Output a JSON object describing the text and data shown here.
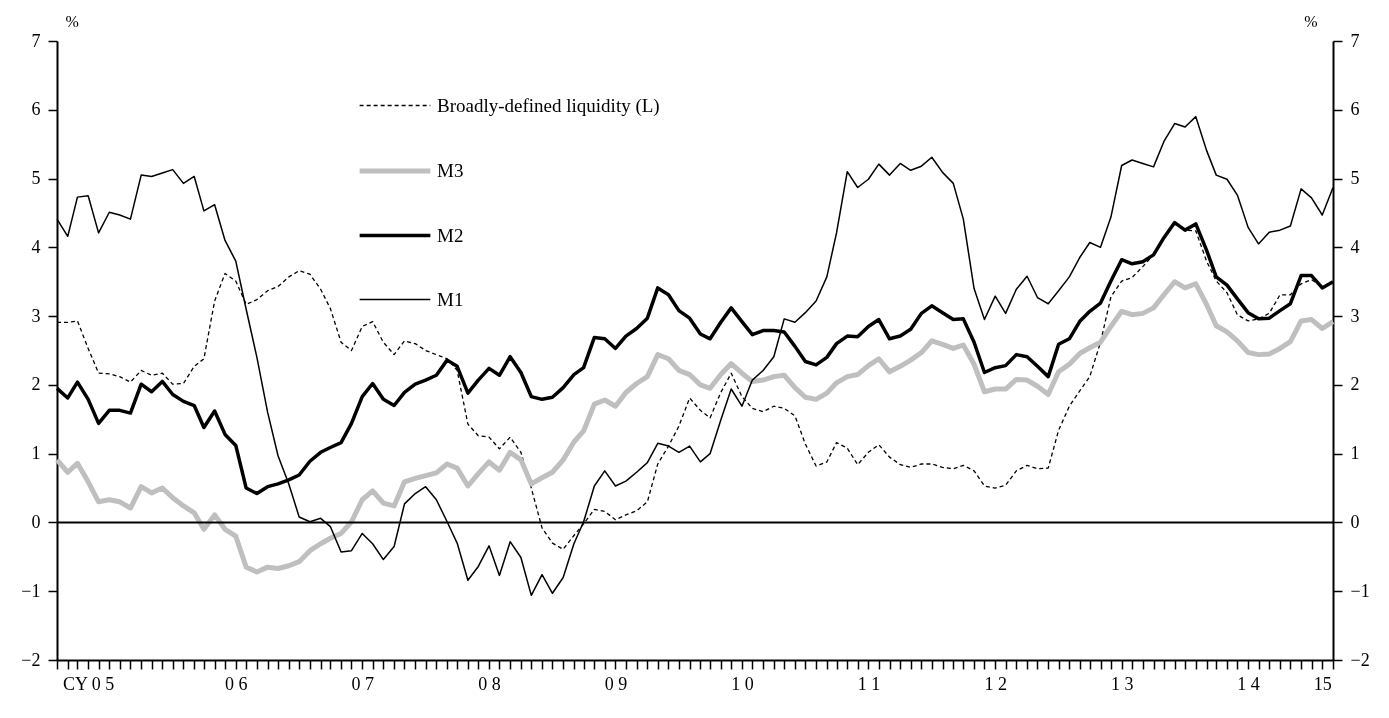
{
  "chart_data": {
    "type": "line",
    "ylabel": "%",
    "y2label": "%",
    "ylim": [
      -2,
      7
    ],
    "yticks": [
      -2,
      -1,
      0,
      1,
      2,
      3,
      4,
      5,
      6,
      7
    ],
    "y2lim": [
      -2,
      7
    ],
    "y2ticks": [
      -2,
      -1,
      0,
      1,
      2,
      3,
      4,
      5,
      6,
      7
    ],
    "xlim": [
      "2005-01",
      "2015-02"
    ],
    "legend": "top left",
    "ref_lines": [
      {
        "axis": "y",
        "value": 0,
        "color": "#000000",
        "line_style": "solid"
      }
    ],
    "x": [
      "2005-01",
      "2005-02",
      "2005-03",
      "2005-04",
      "2005-05",
      "2005-06",
      "2005-07",
      "2005-08",
      "2005-09",
      "2005-10",
      "2005-11",
      "2005-12",
      "2006-01",
      "2006-02",
      "2006-03",
      "2006-04",
      "2006-05",
      "2006-06",
      "2006-07",
      "2006-08",
      "2006-09",
      "2006-10",
      "2006-11",
      "2006-12",
      "2007-01",
      "2007-02",
      "2007-03",
      "2007-04",
      "2007-05",
      "2007-06",
      "2007-07",
      "2007-08",
      "2007-09",
      "2007-10",
      "2007-11",
      "2007-12",
      "2008-01",
      "2008-02",
      "2008-03",
      "2008-04",
      "2008-05",
      "2008-06",
      "2008-07",
      "2008-08",
      "2008-09",
      "2008-10",
      "2008-11",
      "2008-12",
      "2009-01",
      "2009-02",
      "2009-03",
      "2009-04",
      "2009-05",
      "2009-06",
      "2009-07",
      "2009-08",
      "2009-09",
      "2009-10",
      "2009-11",
      "2009-12",
      "2010-01",
      "2010-02",
      "2010-03",
      "2010-04",
      "2010-05",
      "2010-06",
      "2010-07",
      "2010-08",
      "2010-09",
      "2010-10",
      "2010-11",
      "2010-12",
      "2011-01",
      "2011-02",
      "2011-03",
      "2011-04",
      "2011-05",
      "2011-06",
      "2011-07",
      "2011-08",
      "2011-09",
      "2011-10",
      "2011-11",
      "2011-12",
      "2012-01",
      "2012-02",
      "2012-03",
      "2012-04",
      "2012-05",
      "2012-06",
      "2012-07",
      "2012-08",
      "2012-09",
      "2012-10",
      "2012-11",
      "2012-12",
      "2013-01",
      "2013-02",
      "2013-03",
      "2013-04",
      "2013-05",
      "2013-06",
      "2013-07",
      "2013-08",
      "2013-09",
      "2013-10",
      "2013-11",
      "2013-12",
      "2014-01",
      "2014-02",
      "2014-03",
      "2014-04",
      "2014-05",
      "2014-06",
      "2014-07",
      "2014-08",
      "2014-09",
      "2014-10",
      "2014-11",
      "2014-12",
      "2015-01",
      "2015-02"
    ],
    "xticks": [
      {
        "value": "2005-01",
        "label": null
      },
      {
        "value": "2005-02",
        "label": null
      },
      {
        "value": "2005-03",
        "label": null
      },
      {
        "value": "2005-04",
        "label": "CY 0 5"
      },
      {
        "value": "2005-05",
        "label": null
      },
      {
        "value": "2005-06",
        "label": null
      },
      {
        "value": "2005-07",
        "label": null
      },
      {
        "value": "2005-08",
        "label": null
      },
      {
        "value": "2005-09",
        "label": null
      },
      {
        "value": "2005-10",
        "label": null
      },
      {
        "value": "2005-11",
        "label": null
      },
      {
        "value": "2005-12",
        "label": null
      },
      {
        "value": "2006-01",
        "label": null
      },
      {
        "value": "2006-02",
        "label": null
      },
      {
        "value": "2006-03",
        "label": null
      },
      {
        "value": "2006-04",
        "label": null
      },
      {
        "value": "2006-05",
        "label": null
      },
      {
        "value": "2006-06",
        "label": "0 6"
      },
      {
        "value": "2006-07",
        "label": null
      },
      {
        "value": "2006-08",
        "label": null
      },
      {
        "value": "2006-09",
        "label": null
      },
      {
        "value": "2006-10",
        "label": null
      },
      {
        "value": "2006-11",
        "label": null
      },
      {
        "value": "2006-12",
        "label": null
      },
      {
        "value": "2007-01",
        "label": null
      },
      {
        "value": "2007-02",
        "label": null
      },
      {
        "value": "2007-03",
        "label": null
      },
      {
        "value": "2007-04",
        "label": null
      },
      {
        "value": "2007-05",
        "label": null
      },
      {
        "value": "2007-06",
        "label": "0 7"
      },
      {
        "value": "2007-07",
        "label": null
      },
      {
        "value": "2007-08",
        "label": null
      },
      {
        "value": "2007-09",
        "label": null
      },
      {
        "value": "2007-10",
        "label": null
      },
      {
        "value": "2007-11",
        "label": null
      },
      {
        "value": "2007-12",
        "label": null
      },
      {
        "value": "2008-01",
        "label": null
      },
      {
        "value": "2008-02",
        "label": null
      },
      {
        "value": "2008-03",
        "label": null
      },
      {
        "value": "2008-04",
        "label": null
      },
      {
        "value": "2008-05",
        "label": null
      },
      {
        "value": "2008-06",
        "label": "0 8"
      },
      {
        "value": "2008-07",
        "label": null
      },
      {
        "value": "2008-08",
        "label": null
      },
      {
        "value": "2008-09",
        "label": null
      },
      {
        "value": "2008-10",
        "label": null
      },
      {
        "value": "2008-11",
        "label": null
      },
      {
        "value": "2008-12",
        "label": null
      },
      {
        "value": "2009-01",
        "label": null
      },
      {
        "value": "2009-02",
        "label": null
      },
      {
        "value": "2009-03",
        "label": null
      },
      {
        "value": "2009-04",
        "label": null
      },
      {
        "value": "2009-05",
        "label": null
      },
      {
        "value": "2009-06",
        "label": "0 9"
      },
      {
        "value": "2009-07",
        "label": null
      },
      {
        "value": "2009-08",
        "label": null
      },
      {
        "value": "2009-09",
        "label": null
      },
      {
        "value": "2009-10",
        "label": null
      },
      {
        "value": "2009-11",
        "label": null
      },
      {
        "value": "2009-12",
        "label": null
      },
      {
        "value": "2010-01",
        "label": null
      },
      {
        "value": "2010-02",
        "label": null
      },
      {
        "value": "2010-03",
        "label": null
      },
      {
        "value": "2010-04",
        "label": null
      },
      {
        "value": "2010-05",
        "label": null
      },
      {
        "value": "2010-06",
        "label": "1 0"
      },
      {
        "value": "2010-07",
        "label": null
      },
      {
        "value": "2010-08",
        "label": null
      },
      {
        "value": "2010-09",
        "label": null
      },
      {
        "value": "2010-10",
        "label": null
      },
      {
        "value": "2010-11",
        "label": null
      },
      {
        "value": "2010-12",
        "label": null
      },
      {
        "value": "2011-01",
        "label": null
      },
      {
        "value": "2011-02",
        "label": null
      },
      {
        "value": "2011-03",
        "label": null
      },
      {
        "value": "2011-04",
        "label": null
      },
      {
        "value": "2011-05",
        "label": null
      },
      {
        "value": "2011-06",
        "label": "1 1"
      },
      {
        "value": "2011-07",
        "label": null
      },
      {
        "value": "2011-08",
        "label": null
      },
      {
        "value": "2011-09",
        "label": null
      },
      {
        "value": "2011-10",
        "label": null
      },
      {
        "value": "2011-11",
        "label": null
      },
      {
        "value": "2011-12",
        "label": null
      },
      {
        "value": "2012-01",
        "label": null
      },
      {
        "value": "2012-02",
        "label": null
      },
      {
        "value": "2012-03",
        "label": null
      },
      {
        "value": "2012-04",
        "label": null
      },
      {
        "value": "2012-05",
        "label": null
      },
      {
        "value": "2012-06",
        "label": "1 2"
      },
      {
        "value": "2012-07",
        "label": null
      },
      {
        "value": "2012-08",
        "label": null
      },
      {
        "value": "2012-09",
        "label": null
      },
      {
        "value": "2012-10",
        "label": null
      },
      {
        "value": "2012-11",
        "label": null
      },
      {
        "value": "2012-12",
        "label": null
      },
      {
        "value": "2013-01",
        "label": null
      },
      {
        "value": "2013-02",
        "label": null
      },
      {
        "value": "2013-03",
        "label": null
      },
      {
        "value": "2013-04",
        "label": null
      },
      {
        "value": "2013-05",
        "label": null
      },
      {
        "value": "2013-06",
        "label": "1 3"
      },
      {
        "value": "2013-07",
        "label": null
      },
      {
        "value": "2013-08",
        "label": null
      },
      {
        "value": "2013-09",
        "label": null
      },
      {
        "value": "2013-10",
        "label": null
      },
      {
        "value": "2013-11",
        "label": null
      },
      {
        "value": "2013-12",
        "label": null
      },
      {
        "value": "2014-01",
        "label": null
      },
      {
        "value": "2014-02",
        "label": null
      },
      {
        "value": "2014-03",
        "label": null
      },
      {
        "value": "2014-04",
        "label": null
      },
      {
        "value": "2014-05",
        "label": null
      },
      {
        "value": "2014-06",
        "label": "1 4"
      },
      {
        "value": "2014-07",
        "label": null
      },
      {
        "value": "2014-08",
        "label": null
      },
      {
        "value": "2014-09",
        "label": null
      },
      {
        "value": "2014-10",
        "label": null
      },
      {
        "value": "2014-11",
        "label": null
      },
      {
        "value": "2014-12",
        "label": null
      },
      {
        "value": "2015-01",
        "label": "15"
      },
      {
        "value": "2015-02",
        "label": null
      }
    ],
    "series": [
      {
        "name": "Broadly-defined liquidity (L)",
        "color": "#000000",
        "line_style": "dashed",
        "values": [
          2.91,
          2.91,
          2.93,
          2.53,
          2.17,
          2.16,
          2.12,
          2.04,
          2.21,
          2.14,
          2.17,
          2.01,
          2.02,
          2.27,
          2.38,
          3.22,
          3.62,
          3.51,
          3.17,
          3.24,
          3.37,
          3.43,
          3.57,
          3.66,
          3.61,
          3.39,
          3.11,
          2.62,
          2.5,
          2.85,
          2.92,
          2.62,
          2.44,
          2.64,
          2.6,
          2.5,
          2.44,
          2.38,
          2.21,
          1.43,
          1.26,
          1.24,
          1.07,
          1.24,
          1.02,
          0.5,
          -0.08,
          -0.3,
          -0.39,
          -0.19,
          -0.02,
          0.19,
          0.16,
          0.04,
          0.11,
          0.17,
          0.3,
          0.85,
          1.11,
          1.4,
          1.81,
          1.63,
          1.52,
          1.89,
          2.17,
          1.83,
          1.66,
          1.61,
          1.69,
          1.66,
          1.55,
          1.14,
          0.82,
          0.88,
          1.16,
          1.08,
          0.84,
          1.02,
          1.13,
          0.95,
          0.84,
          0.8,
          0.85,
          0.85,
          0.8,
          0.78,
          0.83,
          0.75,
          0.53,
          0.5,
          0.54,
          0.75,
          0.83,
          0.78,
          0.79,
          1.34,
          1.69,
          1.92,
          2.12,
          2.62,
          3.28,
          3.51,
          3.56,
          3.72,
          3.89,
          4.15,
          4.35,
          4.25,
          4.24,
          3.8,
          3.51,
          3.34,
          3.02,
          2.93,
          2.96,
          3.04,
          3.31,
          3.31,
          3.47,
          3.53,
          3.43,
          3.49
        ]
      },
      {
        "name": "M3",
        "color": "#bfbfbf",
        "line_style": "solid",
        "values": [
          0.91,
          0.73,
          0.86,
          0.59,
          0.3,
          0.33,
          0.3,
          0.21,
          0.52,
          0.43,
          0.5,
          0.36,
          0.24,
          0.14,
          -0.1,
          0.11,
          -0.1,
          -0.2,
          -0.65,
          -0.72,
          -0.65,
          -0.67,
          -0.63,
          -0.57,
          -0.41,
          -0.31,
          -0.23,
          -0.16,
          0.01,
          0.33,
          0.46,
          0.28,
          0.24,
          0.59,
          0.64,
          0.68,
          0.72,
          0.85,
          0.79,
          0.53,
          0.71,
          0.88,
          0.76,
          1.02,
          0.91,
          0.56,
          0.65,
          0.73,
          0.91,
          1.17,
          1.33,
          1.72,
          1.78,
          1.69,
          1.89,
          2.02,
          2.12,
          2.44,
          2.38,
          2.21,
          2.15,
          2.0,
          1.95,
          2.15,
          2.31,
          2.17,
          2.05,
          2.07,
          2.12,
          2.14,
          1.96,
          1.82,
          1.79,
          1.88,
          2.03,
          2.12,
          2.15,
          2.28,
          2.38,
          2.19,
          2.27,
          2.36,
          2.47,
          2.64,
          2.59,
          2.53,
          2.58,
          2.3,
          1.9,
          1.94,
          1.94,
          2.08,
          2.07,
          1.98,
          1.86,
          2.19,
          2.3,
          2.46,
          2.54,
          2.62,
          2.85,
          3.07,
          3.02,
          3.04,
          3.12,
          3.31,
          3.5,
          3.41,
          3.47,
          3.17,
          2.86,
          2.77,
          2.64,
          2.47,
          2.44,
          2.45,
          2.53,
          2.63,
          2.93,
          2.95,
          2.82,
          2.92
        ]
      },
      {
        "name": "M2",
        "color": "#000000",
        "line_style": "solid",
        "values": [
          1.95,
          1.81,
          2.04,
          1.79,
          1.44,
          1.63,
          1.63,
          1.59,
          2.01,
          1.9,
          2.05,
          1.86,
          1.76,
          1.7,
          1.38,
          1.62,
          1.28,
          1.12,
          0.5,
          0.42,
          0.52,
          0.56,
          0.62,
          0.69,
          0.89,
          1.02,
          1.09,
          1.16,
          1.44,
          1.83,
          2.02,
          1.79,
          1.7,
          1.89,
          2.01,
          2.07,
          2.14,
          2.36,
          2.27,
          1.88,
          2.07,
          2.24,
          2.14,
          2.41,
          2.18,
          1.83,
          1.79,
          1.82,
          1.96,
          2.15,
          2.25,
          2.69,
          2.67,
          2.53,
          2.71,
          2.82,
          2.97,
          3.41,
          3.31,
          3.08,
          2.97,
          2.74,
          2.67,
          2.91,
          3.12,
          2.92,
          2.73,
          2.79,
          2.79,
          2.77,
          2.56,
          2.34,
          2.29,
          2.4,
          2.6,
          2.71,
          2.7,
          2.85,
          2.95,
          2.67,
          2.71,
          2.81,
          3.04,
          3.15,
          3.05,
          2.95,
          2.96,
          2.62,
          2.18,
          2.25,
          2.28,
          2.44,
          2.41,
          2.27,
          2.12,
          2.59,
          2.67,
          2.93,
          3.07,
          3.19,
          3.51,
          3.82,
          3.76,
          3.79,
          3.89,
          4.14,
          4.36,
          4.25,
          4.34,
          3.96,
          3.57,
          3.45,
          3.25,
          3.05,
          2.96,
          2.97,
          3.08,
          3.18,
          3.59,
          3.59,
          3.41,
          3.5
        ]
      },
      {
        "name": "M1",
        "color": "#000000",
        "line_style": "solid",
        "values": [
          4.41,
          4.16,
          4.73,
          4.75,
          4.21,
          4.51,
          4.47,
          4.41,
          5.05,
          5.03,
          5.08,
          5.13,
          4.93,
          5.03,
          4.53,
          4.62,
          4.1,
          3.8,
          3.1,
          2.4,
          1.6,
          0.97,
          0.56,
          0.08,
          0.01,
          0.06,
          -0.06,
          -0.43,
          -0.41,
          -0.16,
          -0.31,
          -0.54,
          -0.35,
          0.27,
          0.42,
          0.52,
          0.33,
          0.01,
          -0.3,
          -0.84,
          -0.64,
          -0.34,
          -0.77,
          -0.28,
          -0.51,
          -1.06,
          -0.76,
          -1.03,
          -0.8,
          -0.31,
          0.01,
          0.53,
          0.75,
          0.53,
          0.6,
          0.73,
          0.87,
          1.15,
          1.11,
          1.02,
          1.11,
          0.88,
          1.0,
          1.49,
          1.94,
          1.69,
          2.07,
          2.21,
          2.41,
          2.96,
          2.91,
          3.05,
          3.22,
          3.57,
          4.21,
          5.1,
          4.87,
          4.99,
          5.21,
          5.05,
          5.22,
          5.12,
          5.18,
          5.31,
          5.09,
          4.93,
          4.41,
          3.4,
          2.95,
          3.29,
          3.04,
          3.39,
          3.58,
          3.27,
          3.18,
          3.37,
          3.57,
          3.86,
          4.07,
          4.0,
          4.44,
          5.19,
          5.27,
          5.22,
          5.17,
          5.54,
          5.8,
          5.75,
          5.9,
          5.41,
          5.05,
          4.99,
          4.76,
          4.29,
          4.05,
          4.22,
          4.25,
          4.31,
          4.85,
          4.72,
          4.47,
          4.87
        ]
      }
    ]
  }
}
